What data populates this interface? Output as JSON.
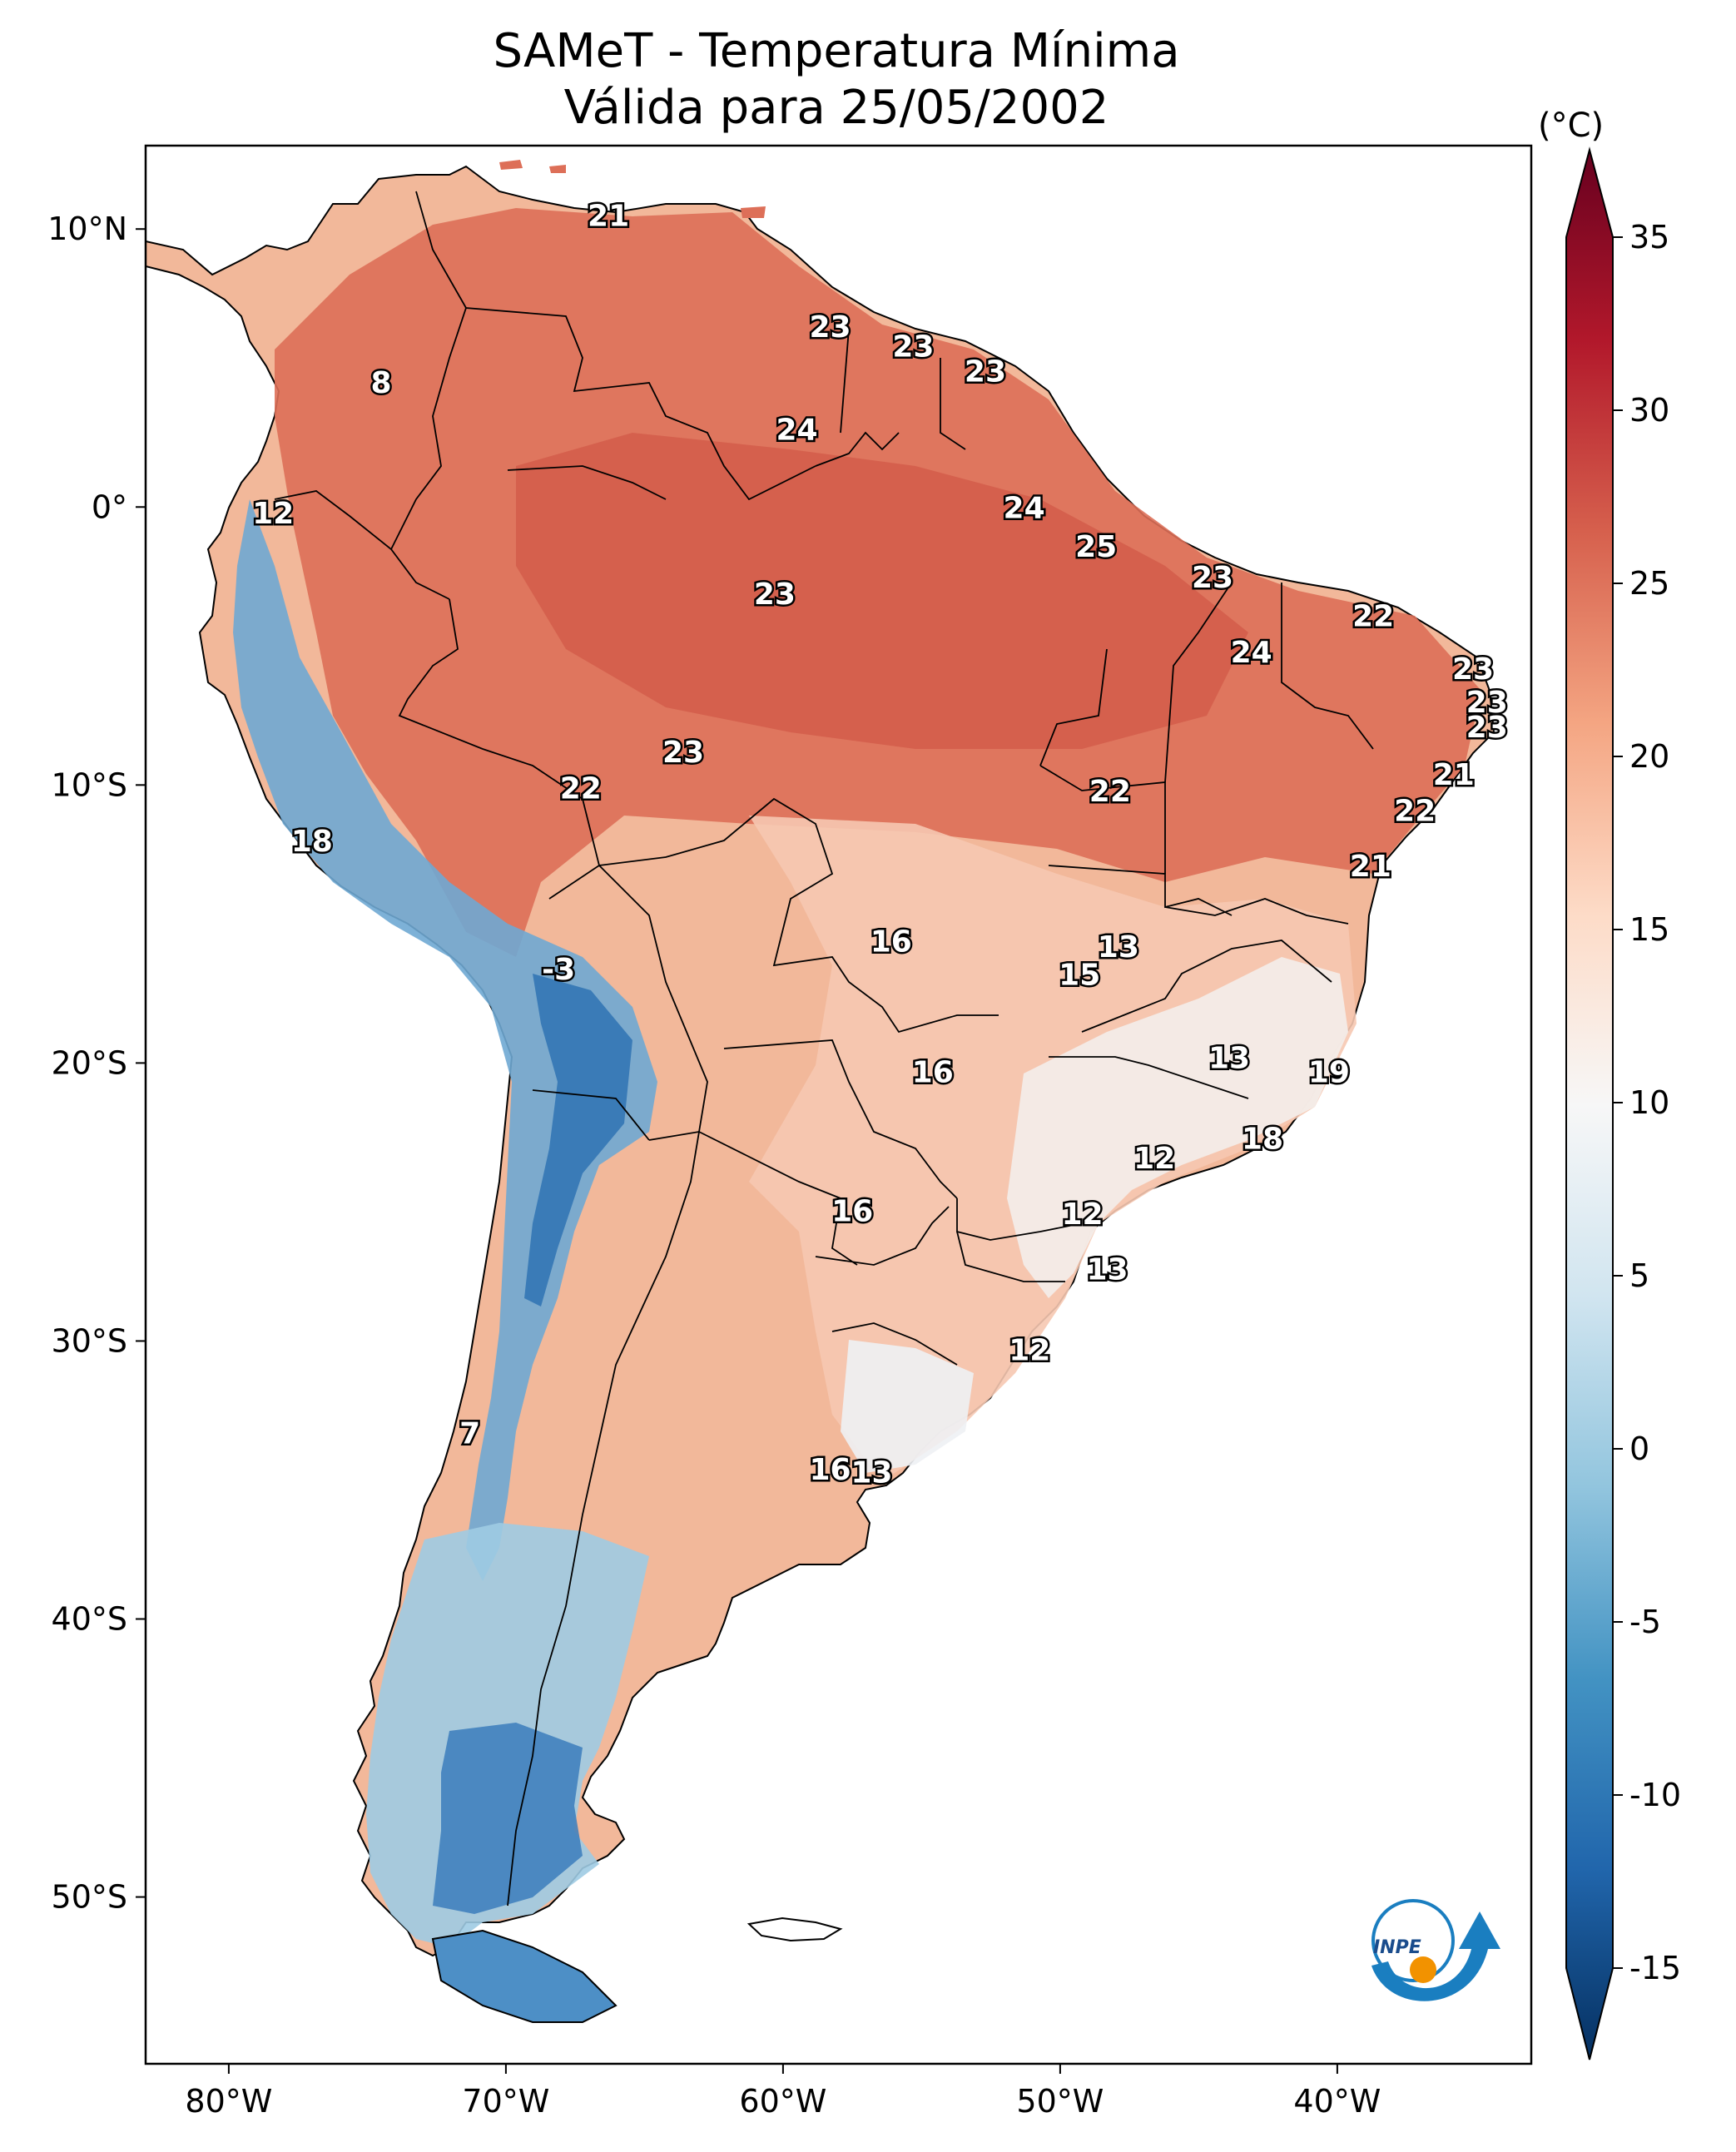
{
  "title": {
    "line1": "SAMeT - Temperatura Mínima",
    "line2": "Válida para 25/05/2002"
  },
  "map": {
    "lon_range": [
      -83,
      -33
    ],
    "lat_range": [
      -56,
      13
    ],
    "lon_ticks": [
      {
        "value": -80,
        "label": "80°W"
      },
      {
        "value": -70,
        "label": "70°W"
      },
      {
        "value": -60,
        "label": "60°W"
      },
      {
        "value": -50,
        "label": "50°W"
      },
      {
        "value": -40,
        "label": "40°W"
      }
    ],
    "lat_ticks": [
      {
        "value": 10,
        "label": "10°N"
      },
      {
        "value": 0,
        "label": "0°"
      },
      {
        "value": -10,
        "label": "10°S"
      },
      {
        "value": -20,
        "label": "20°S"
      },
      {
        "value": -30,
        "label": "30°S"
      },
      {
        "value": -40,
        "label": "40°S"
      },
      {
        "value": -50,
        "label": "50°S"
      }
    ],
    "contour_labels": [
      {
        "text": "21",
        "lon": -66.3,
        "lat": 10.5
      },
      {
        "text": "8",
        "lon": -74.5,
        "lat": 4.5
      },
      {
        "text": "23",
        "lon": -58.3,
        "lat": 6.5
      },
      {
        "text": "23",
        "lon": -55.3,
        "lat": 5.8
      },
      {
        "text": "23",
        "lon": -52.7,
        "lat": 4.9
      },
      {
        "text": "24",
        "lon": -59.5,
        "lat": 2.8
      },
      {
        "text": "12",
        "lon": -78.4,
        "lat": -0.2
      },
      {
        "text": "24",
        "lon": -51.3,
        "lat": 0.0
      },
      {
        "text": "25",
        "lon": -48.7,
        "lat": -1.4
      },
      {
        "text": "23",
        "lon": -60.3,
        "lat": -3.1
      },
      {
        "text": "23",
        "lon": -44.5,
        "lat": -2.5
      },
      {
        "text": "22",
        "lon": -38.7,
        "lat": -3.9
      },
      {
        "text": "24",
        "lon": -43.1,
        "lat": -5.2
      },
      {
        "text": "23",
        "lon": -35.1,
        "lat": -5.8
      },
      {
        "text": "23",
        "lon": -34.6,
        "lat": -7.0
      },
      {
        "text": "23",
        "lon": -34.6,
        "lat": -7.9
      },
      {
        "text": "23",
        "lon": -63.6,
        "lat": -8.8
      },
      {
        "text": "21",
        "lon": -35.8,
        "lat": -9.6
      },
      {
        "text": "22",
        "lon": -67.3,
        "lat": -10.1
      },
      {
        "text": "22",
        "lon": -48.2,
        "lat": -10.2
      },
      {
        "text": "22",
        "lon": -37.2,
        "lat": -10.9
      },
      {
        "text": "18",
        "lon": -77.0,
        "lat": -12.0
      },
      {
        "text": "21",
        "lon": -38.8,
        "lat": -12.9
      },
      {
        "text": "16",
        "lon": -56.1,
        "lat": -15.6
      },
      {
        "text": "13",
        "lon": -47.9,
        "lat": -15.8
      },
      {
        "text": "15",
        "lon": -49.3,
        "lat": -16.8
      },
      {
        "text": "-3",
        "lon": -68.1,
        "lat": -16.6
      },
      {
        "text": "13",
        "lon": -43.9,
        "lat": -19.8
      },
      {
        "text": "19",
        "lon": -40.3,
        "lat": -20.3
      },
      {
        "text": "16",
        "lon": -54.6,
        "lat": -20.3
      },
      {
        "text": "18",
        "lon": -42.7,
        "lat": -22.7
      },
      {
        "text": "12",
        "lon": -46.6,
        "lat": -23.4
      },
      {
        "text": "16",
        "lon": -57.5,
        "lat": -25.3
      },
      {
        "text": "12",
        "lon": -49.2,
        "lat": -25.4
      },
      {
        "text": "13",
        "lon": -48.3,
        "lat": -27.4
      },
      {
        "text": "12",
        "lon": -51.1,
        "lat": -30.3
      },
      {
        "text": "7",
        "lon": -71.3,
        "lat": -33.3
      },
      {
        "text": "16",
        "lon": -58.3,
        "lat": -34.6
      },
      {
        "text": "13",
        "lon": -56.8,
        "lat": -34.7
      }
    ],
    "logo_text": "INPE"
  },
  "colorbar": {
    "unit": "(°C)",
    "min": -15,
    "max": 35,
    "ticks": [
      {
        "value": 35,
        "label": "35"
      },
      {
        "value": 30,
        "label": "30"
      },
      {
        "value": 25,
        "label": "25"
      },
      {
        "value": 20,
        "label": "20"
      },
      {
        "value": 15,
        "label": "15"
      },
      {
        "value": 10,
        "label": "10"
      },
      {
        "value": 5,
        "label": "5"
      },
      {
        "value": 0,
        "label": "0"
      },
      {
        "value": -5,
        "label": "-5"
      },
      {
        "value": -10,
        "label": "-10"
      },
      {
        "value": -15,
        "label": "-15"
      }
    ],
    "colors": [
      "#053061",
      "#2166ac",
      "#4393c3",
      "#92c5de",
      "#d1e5f0",
      "#f7f7f7",
      "#fddbc7",
      "#f4a582",
      "#d6604d",
      "#b2182b",
      "#67001f"
    ]
  }
}
